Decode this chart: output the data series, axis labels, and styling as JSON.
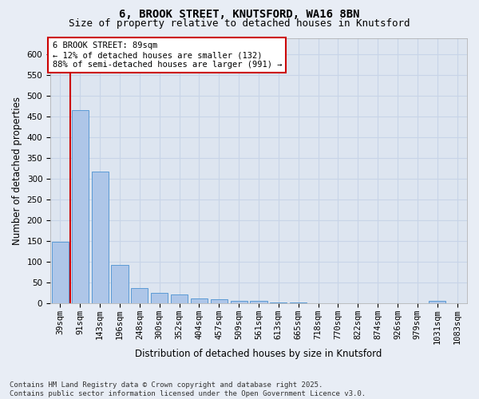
{
  "title_line1": "6, BROOK STREET, KNUTSFORD, WA16 8BN",
  "title_line2": "Size of property relative to detached houses in Knutsford",
  "xlabel": "Distribution of detached houses by size in Knutsford",
  "ylabel": "Number of detached properties",
  "categories": [
    "39sqm",
    "91sqm",
    "143sqm",
    "196sqm",
    "248sqm",
    "300sqm",
    "352sqm",
    "404sqm",
    "457sqm",
    "509sqm",
    "561sqm",
    "613sqm",
    "665sqm",
    "718sqm",
    "770sqm",
    "822sqm",
    "874sqm",
    "926sqm",
    "979sqm",
    "1031sqm",
    "1083sqm"
  ],
  "values": [
    148,
    466,
    317,
    92,
    37,
    25,
    22,
    12,
    10,
    5,
    5,
    2,
    2,
    1,
    1,
    1,
    1,
    0,
    0,
    6,
    0
  ],
  "bar_color": "#aec6e8",
  "bar_edge_color": "#5b9bd5",
  "background_color": "#dde5f0",
  "grid_color": "#c8d4e8",
  "vline_x": 0.5,
  "vline_color": "#cc0000",
  "annotation_title": "6 BROOK STREET: 89sqm",
  "annotation_line2": "← 12% of detached houses are smaller (132)",
  "annotation_line3": "88% of semi-detached houses are larger (991) →",
  "annotation_box_color": "#cc0000",
  "ylim": [
    0,
    640
  ],
  "yticks": [
    0,
    50,
    100,
    150,
    200,
    250,
    300,
    350,
    400,
    450,
    500,
    550,
    600
  ],
  "footer_line1": "Contains HM Land Registry data © Crown copyright and database right 2025.",
  "footer_line2": "Contains public sector information licensed under the Open Government Licence v3.0.",
  "title_fontsize": 10,
  "subtitle_fontsize": 9,
  "axis_label_fontsize": 8.5,
  "tick_fontsize": 7.5,
  "annotation_fontsize": 7.5,
  "footer_fontsize": 6.5,
  "fig_bg": "#e8edf5"
}
